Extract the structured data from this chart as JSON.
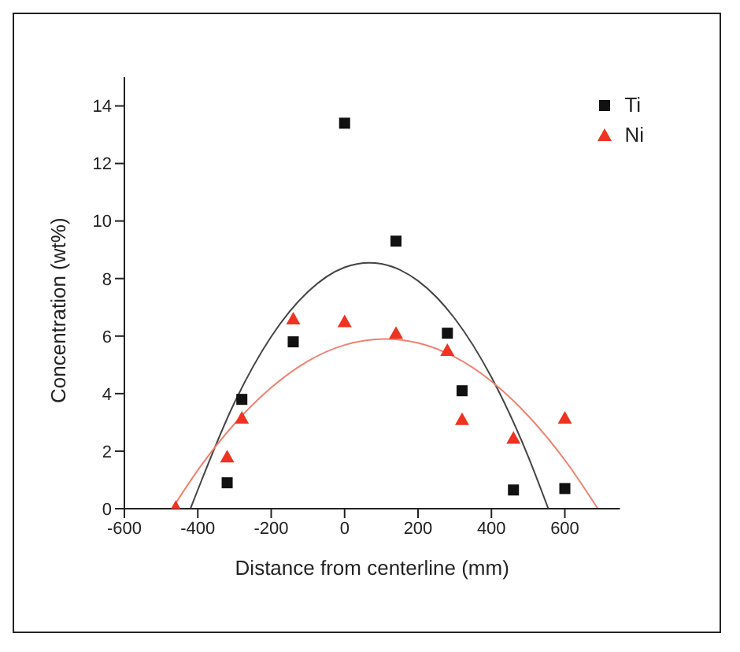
{
  "chart_data": {
    "type": "scatter",
    "xlabel": "Distance from centerline (mm)",
    "ylabel": "Concentration (wt%)",
    "xlim": [
      -600,
      750
    ],
    "xticks": [
      -600,
      -400,
      -200,
      0,
      200,
      400,
      600
    ],
    "ylim": [
      0,
      15
    ],
    "yticks": [
      0,
      2,
      4,
      6,
      8,
      10,
      12,
      14
    ],
    "legend": "top right",
    "grid": false,
    "series": [
      {
        "name": "Ti",
        "color": "#111111",
        "marker": "square",
        "x": [
          -320,
          -280,
          -140,
          0,
          140,
          280,
          320,
          460,
          600
        ],
        "values": [
          0.9,
          3.8,
          5.8,
          13.4,
          9.3,
          6.1,
          4.1,
          0.65,
          0.7
        ]
      },
      {
        "name": "Ni",
        "color": "#ee3322",
        "marker": "triangle",
        "x": [
          -460,
          -320,
          -280,
          -140,
          0,
          140,
          280,
          320,
          460,
          600
        ],
        "values": [
          0.05,
          1.8,
          3.15,
          6.6,
          6.5,
          6.1,
          5.5,
          3.1,
          2.45,
          3.15
        ]
      },
      {
        "type": "line",
        "color": "#444444",
        "marker": "none",
        "x": [
          -420,
          -300,
          -200,
          -100,
          0,
          67.5,
          100,
          200,
          300,
          400,
          500,
          555
        ],
        "values": [
          0,
          3.69,
          5.98,
          7.54,
          8.39,
          8.55,
          8.51,
          7.92,
          6.61,
          4.57,
          1.82,
          0
        ]
      },
      {
        "type": "line",
        "color": "#f08070",
        "marker": "none",
        "x": [
          -470,
          -400,
          -300,
          -200,
          -100,
          0,
          110,
          200,
          300,
          400,
          500,
          600,
          690
        ],
        "values": [
          0,
          1.34,
          2.95,
          4.21,
          5.13,
          5.69,
          5.9,
          5.76,
          5.27,
          4.43,
          3.23,
          1.69,
          0
        ]
      }
    ]
  }
}
